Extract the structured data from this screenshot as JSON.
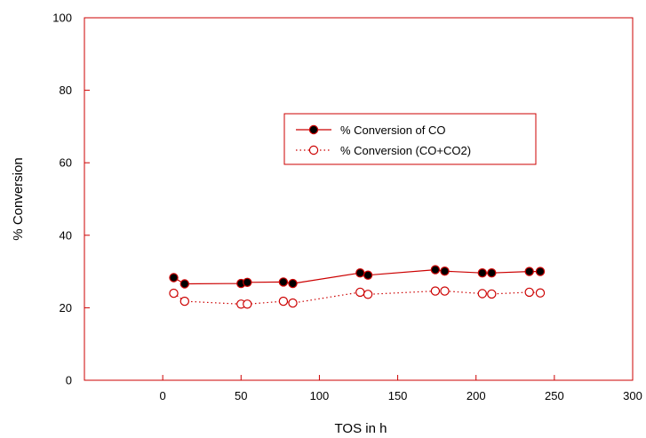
{
  "chart_data": {
    "type": "scatter",
    "title": "",
    "xlabel": "TOS in h",
    "ylabel": "% Conversion",
    "xlim": [
      -50,
      300
    ],
    "ylim": [
      0,
      100
    ],
    "xticks": [
      0,
      50,
      100,
      150,
      200,
      250,
      300
    ],
    "yticks": [
      0,
      20,
      40,
      60,
      80,
      100
    ],
    "grid": false,
    "legend_position": "upper-middle-right",
    "series": [
      {
        "name": "% Conversion of CO",
        "color": "#cc0000",
        "line_style": "solid",
        "marker": "filled-circle",
        "marker_fill": "#000000",
        "x": [
          7,
          14,
          50,
          54,
          77,
          83,
          126,
          131,
          174,
          180,
          204,
          210,
          234,
          241
        ],
        "y": [
          28.3,
          26.6,
          26.7,
          27.0,
          27.1,
          26.7,
          29.6,
          29.0,
          30.5,
          30.1,
          29.6,
          29.6,
          30.0,
          30.0
        ]
      },
      {
        "name": "% Conversion (CO+CO2)",
        "color": "#cc0000",
        "line_style": "dotted",
        "marker": "open-circle",
        "marker_fill": "#ffffff",
        "x": [
          7,
          14,
          50,
          54,
          77,
          83,
          126,
          131,
          174,
          180,
          204,
          210,
          234,
          241
        ],
        "y": [
          24.0,
          21.8,
          21.0,
          21.0,
          21.8,
          21.3,
          24.3,
          23.7,
          24.6,
          24.6,
          23.9,
          23.8,
          24.3,
          24.1
        ]
      }
    ]
  },
  "colors": {
    "axis": "#cc0000",
    "text": "#000000",
    "background": "#ffffff"
  }
}
